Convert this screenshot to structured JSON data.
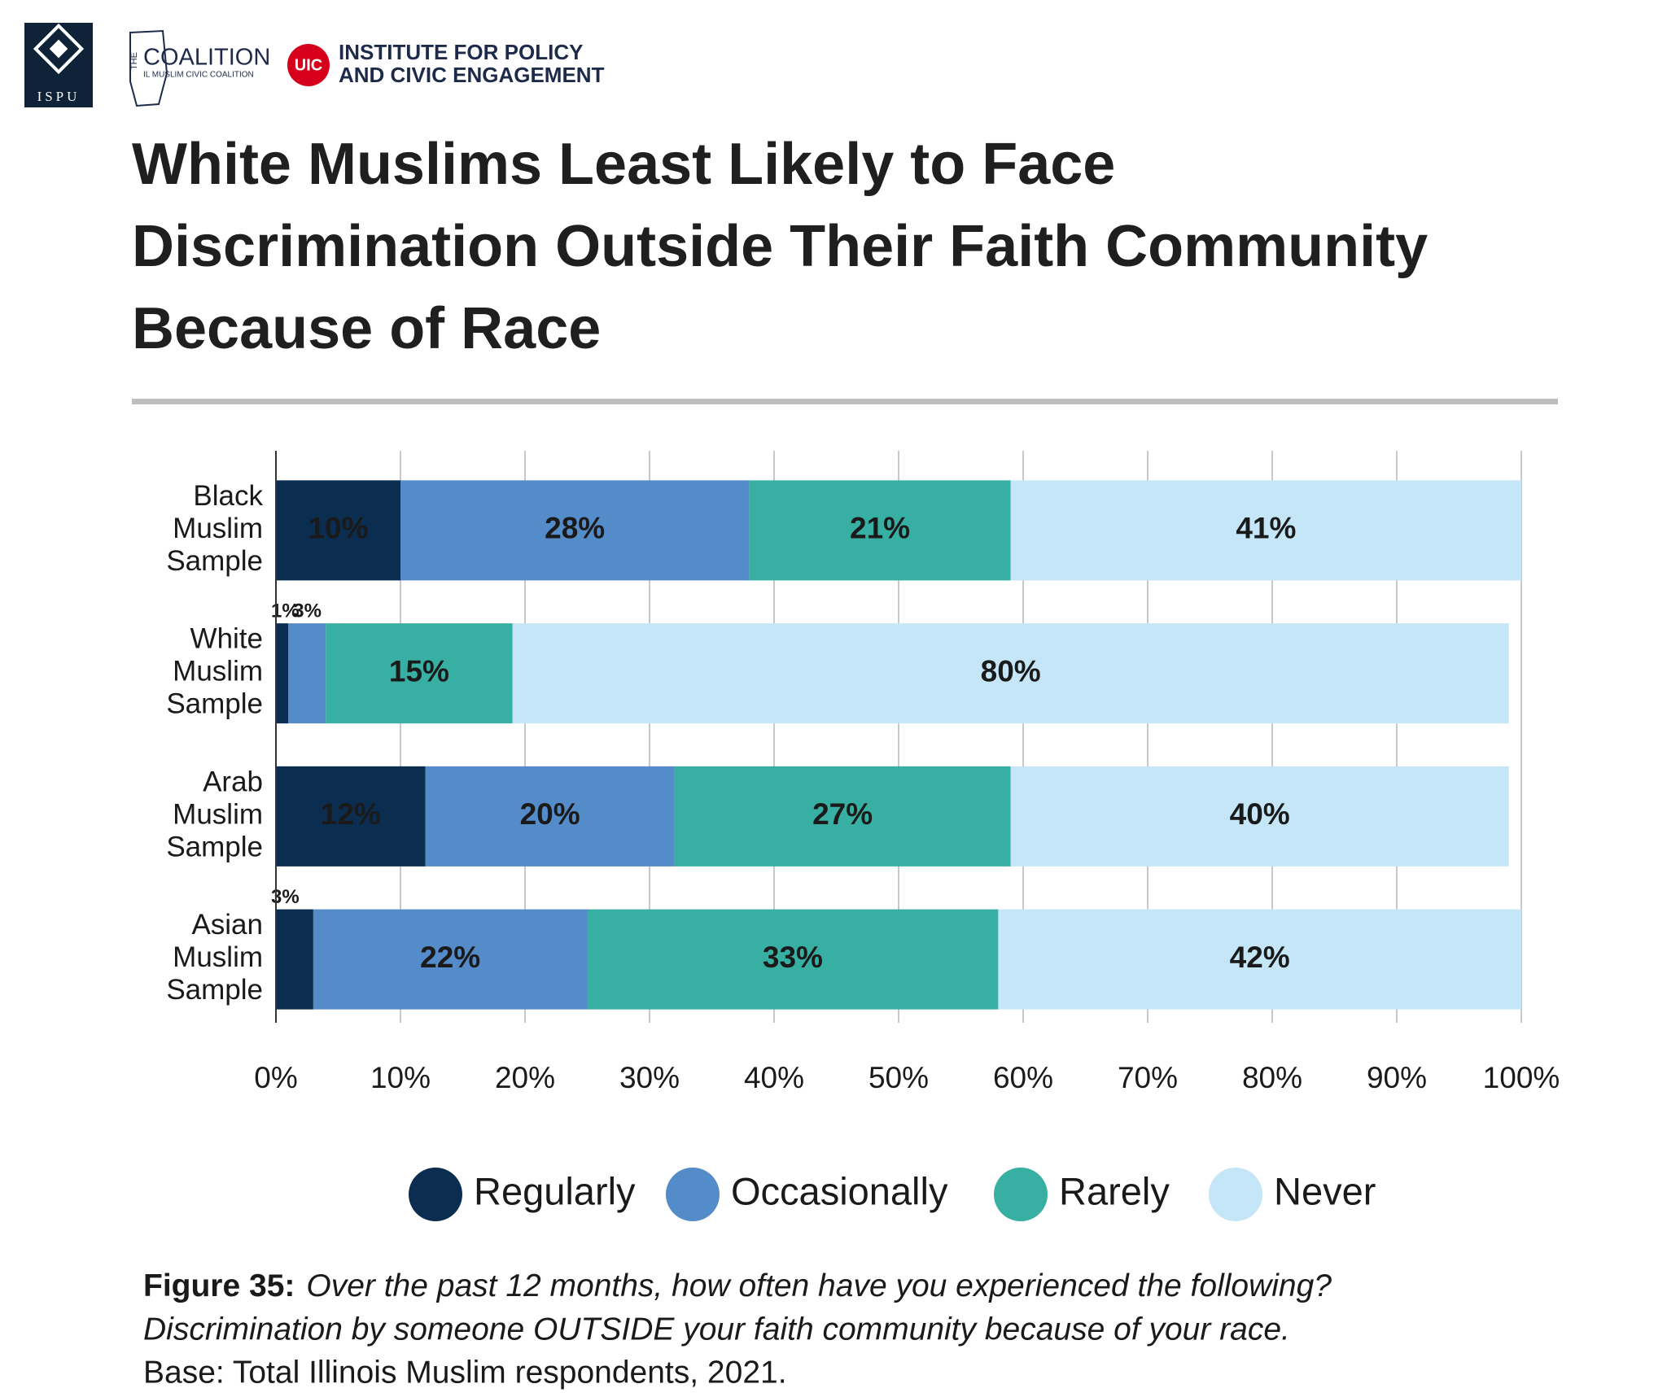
{
  "header": {
    "logo_ispu": "ISPU",
    "logo_coalition_the": "THE",
    "logo_coalition": "COALITION",
    "logo_coalition_sub": "IL MUSLIM CIVIC COALITION",
    "logo_uic": "UIC",
    "logo_ipce_line1": "INSTITUTE FOR POLICY",
    "logo_ipce_line2": "AND CIVIC ENGAGEMENT"
  },
  "chart_data": {
    "type": "stacked-bar-horizontal",
    "title_lines": [
      "White Muslims Least Likely to Face",
      "Discrimination Outside Their Faith Community",
      "Because of Race"
    ],
    "categories": [
      "Black Muslim Sample",
      "White Muslim Sample",
      "Arab Muslim Sample",
      "Asian Muslim Sample"
    ],
    "series": [
      {
        "name": "Regularly",
        "color": "#0b2d50",
        "values": [
          10,
          1,
          12,
          3
        ],
        "value_labels": [
          "10%",
          "1%",
          "12%",
          "3%"
        ]
      },
      {
        "name": "Occasionally",
        "color": "#548bc9",
        "values": [
          28,
          3,
          20,
          22
        ],
        "value_labels": [
          "28%",
          "3%",
          "20%",
          "22%"
        ]
      },
      {
        "name": "Rarely",
        "color": "#38afa3",
        "values": [
          21,
          15,
          27,
          33
        ],
        "value_labels": [
          "21%",
          "15%",
          "27%",
          "33%"
        ]
      },
      {
        "name": "Never",
        "color": "#c4e6f7",
        "values": [
          41,
          80,
          40,
          42
        ],
        "value_labels": [
          "41%",
          "80%",
          "40%",
          "42%"
        ]
      }
    ],
    "xlim": [
      0,
      100
    ],
    "xticks": [
      {
        "value": 0,
        "label": "0%"
      },
      {
        "value": 10,
        "label": "10%"
      },
      {
        "value": 20,
        "label": "20%"
      },
      {
        "value": 30,
        "label": "30%"
      },
      {
        "value": 40,
        "label": "40%"
      },
      {
        "value": 50,
        "label": "50%"
      },
      {
        "value": 60,
        "label": "60%"
      },
      {
        "value": 70,
        "label": "70%"
      },
      {
        "value": 80,
        "label": "80%"
      },
      {
        "value": 90,
        "label": "90%"
      },
      {
        "value": 100,
        "label": "100%"
      }
    ],
    "grid": true,
    "legend": "bottom"
  },
  "caption": {
    "label": "Figure 35:",
    "question": "Over the past 12 months, how often have you experienced the following?",
    "item": "Discrimination by someone OUTSIDE your faith community because of your race.",
    "base": "Base: Total Illinois Muslim respondents, 2021."
  }
}
